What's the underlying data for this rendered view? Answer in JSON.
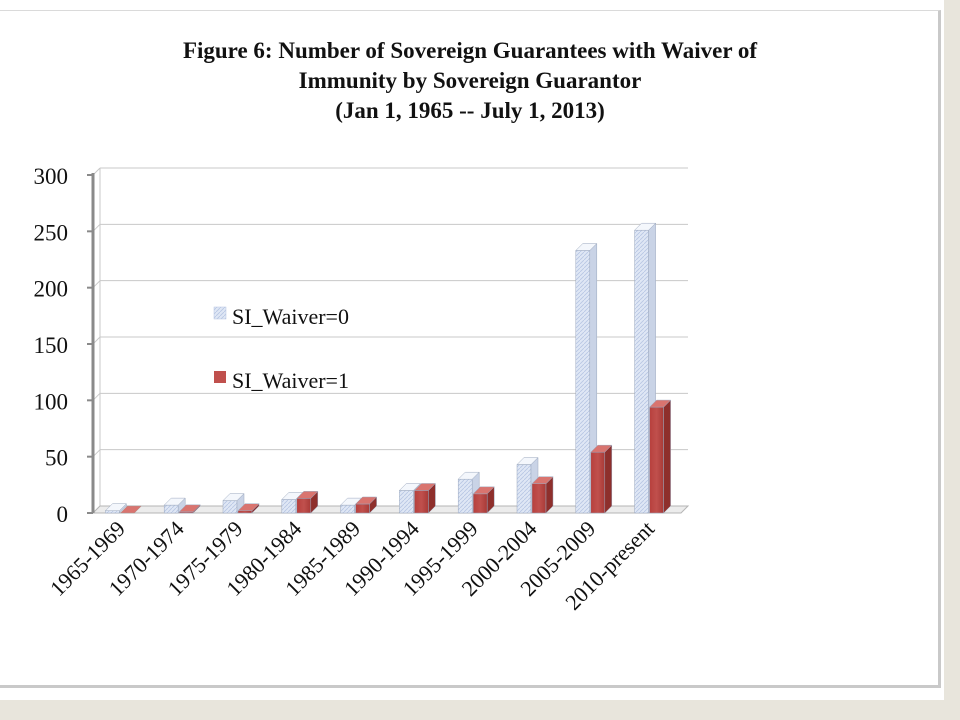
{
  "chart_data": {
    "type": "bar",
    "title": "Figure 6: Number of Sovereign Guarantees with Waiver of Immunity by Sovereign Guarantor (Jan 1, 1965 -- July 1, 2013)",
    "title_lines": [
      "Figure 6: Number of Sovereign Guarantees with Waiver of",
      "Immunity by Sovereign Guarantor",
      "(Jan 1, 1965 -- July 1, 2013)"
    ],
    "categories": [
      "1965-1969",
      "1970-1974",
      "1975-1979",
      "1980-1984",
      "1985-1989",
      "1990-1994",
      "1995-1999",
      "2000-2004",
      "2005-2009",
      "2010-present"
    ],
    "series": [
      {
        "name": "SI_Waiver=0",
        "values": [
          2,
          7,
          11,
          12,
          7,
          20,
          30,
          43,
          233,
          251
        ],
        "color": "#dfe7f5"
      },
      {
        "name": "SI_Waiver=1",
        "values": [
          0,
          1,
          2,
          13,
          8,
          20,
          17,
          26,
          54,
          94
        ],
        "color": "#c0504d"
      }
    ],
    "yticks": [
      0,
      50,
      100,
      150,
      200,
      250,
      300
    ],
    "ylim": [
      0,
      300
    ],
    "grid": true,
    "legend_position": "inside-left",
    "xlabel": "",
    "ylabel": ""
  }
}
